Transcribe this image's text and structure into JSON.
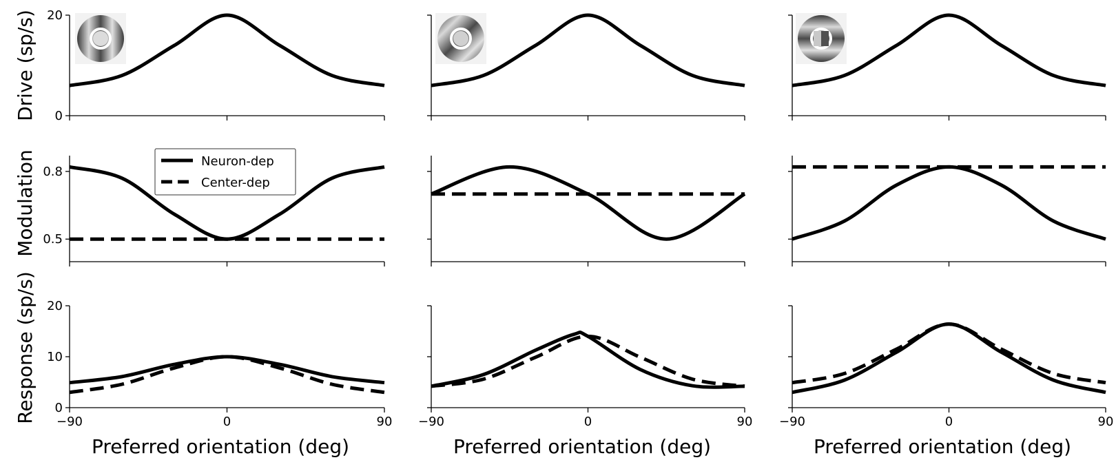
{
  "figure": {
    "row_labels": [
      "Drive (sp/s)",
      "Modulation",
      "Response (sp/s)"
    ],
    "xlabel": "Preferred orientation (deg)",
    "legend": [
      "Neuron-dep",
      "Center-dep"
    ],
    "legend_location": "upper-left of middle-left panel"
  },
  "chart_data": [
    {
      "type": "line",
      "row": 0,
      "col": 0,
      "stimulus_icon": "annulus-vertical-grating-icon",
      "xlim": [
        -90,
        90
      ],
      "ylim": [
        0,
        20
      ],
      "xticks": [
        -90,
        0,
        90
      ],
      "yticks": [
        0,
        20
      ],
      "series": [
        {
          "line_style": "solid",
          "x": [
            -90,
            -60,
            -30,
            0,
            30,
            60,
            90
          ],
          "y": [
            6,
            8,
            14,
            20,
            14,
            8,
            6
          ]
        }
      ]
    },
    {
      "type": "line",
      "row": 0,
      "col": 1,
      "stimulus_icon": "annulus-oblique-grating-icon",
      "xlim": [
        -90,
        90
      ],
      "ylim": [
        0,
        20
      ],
      "xticks": [
        -90,
        0,
        90
      ],
      "yticks": [
        0,
        20
      ],
      "series": [
        {
          "line_style": "solid",
          "x": [
            -90,
            -60,
            -30,
            0,
            30,
            60,
            90
          ],
          "y": [
            6,
            8,
            14,
            20,
            14,
            8,
            6
          ]
        }
      ]
    },
    {
      "type": "line",
      "row": 0,
      "col": 2,
      "stimulus_icon": "annulus-horizontal-grating-icon",
      "xlim": [
        -90,
        90
      ],
      "ylim": [
        0,
        20
      ],
      "xticks": [
        -90,
        0,
        90
      ],
      "yticks": [
        0,
        20
      ],
      "series": [
        {
          "line_style": "solid",
          "x": [
            -90,
            -60,
            -30,
            0,
            30,
            60,
            90
          ],
          "y": [
            6,
            8,
            14,
            20,
            14,
            8,
            6
          ]
        }
      ]
    },
    {
      "type": "line",
      "row": 1,
      "col": 0,
      "xlim": [
        -90,
        90
      ],
      "ylim": [
        0.4,
        0.87
      ],
      "xticks": [
        -90,
        0,
        90
      ],
      "yticks": [
        0.5,
        0.8
      ],
      "series": [
        {
          "name": "Neuron-dep",
          "line_style": "solid",
          "x": [
            -90,
            -60,
            -30,
            0,
            30,
            60,
            90
          ],
          "y": [
            0.82,
            0.77,
            0.61,
            0.5,
            0.61,
            0.77,
            0.82
          ]
        },
        {
          "name": "Center-dep",
          "line_style": "dashed",
          "x": [
            -90,
            90
          ],
          "y": [
            0.5,
            0.5
          ]
        }
      ]
    },
    {
      "type": "line",
      "row": 1,
      "col": 1,
      "xlim": [
        -90,
        90
      ],
      "ylim": [
        0.4,
        0.87
      ],
      "xticks": [
        -90,
        0,
        90
      ],
      "yticks": [
        0.5,
        0.8
      ],
      "series": [
        {
          "name": "Neuron-dep",
          "line_style": "solid",
          "x": [
            -90,
            -45,
            0,
            45,
            90
          ],
          "y": [
            0.7,
            0.82,
            0.7,
            0.5,
            0.7
          ]
        },
        {
          "name": "Center-dep",
          "line_style": "dashed",
          "x": [
            -90,
            90
          ],
          "y": [
            0.7,
            0.7
          ]
        }
      ]
    },
    {
      "type": "line",
      "row": 1,
      "col": 2,
      "xlim": [
        -90,
        90
      ],
      "ylim": [
        0.4,
        0.87
      ],
      "xticks": [
        -90,
        0,
        90
      ],
      "yticks": [
        0.5,
        0.8
      ],
      "series": [
        {
          "name": "Neuron-dep",
          "line_style": "solid",
          "x": [
            -90,
            -60,
            -30,
            0,
            30,
            60,
            90
          ],
          "y": [
            0.5,
            0.58,
            0.74,
            0.82,
            0.74,
            0.58,
            0.5
          ]
        },
        {
          "name": "Center-dep",
          "line_style": "dashed",
          "x": [
            -90,
            90
          ],
          "y": [
            0.82,
            0.82
          ]
        }
      ]
    },
    {
      "type": "line",
      "row": 2,
      "col": 0,
      "xlim": [
        -90,
        90
      ],
      "ylim": [
        0,
        20
      ],
      "xticks": [
        -90,
        0,
        90
      ],
      "yticks": [
        0,
        10,
        20
      ],
      "xticklabels": [
        "−90",
        "0",
        "90"
      ],
      "series": [
        {
          "name": "Neuron-dep",
          "line_style": "solid",
          "x": [
            -90,
            -60,
            -30,
            0,
            30,
            60,
            90
          ],
          "y": [
            4.9,
            6.1,
            8.5,
            10,
            8.5,
            6.1,
            4.9
          ]
        },
        {
          "name": "Center-dep",
          "line_style": "dashed",
          "x": [
            -90,
            -60,
            -30,
            0,
            30,
            60,
            90
          ],
          "y": [
            3,
            4.6,
            7.8,
            10,
            7.8,
            4.6,
            3
          ]
        }
      ]
    },
    {
      "type": "line",
      "row": 2,
      "col": 1,
      "xlim": [
        -90,
        90
      ],
      "ylim": [
        0,
        20
      ],
      "xticks": [
        -90,
        0,
        90
      ],
      "yticks": [
        0,
        10,
        20
      ],
      "xticklabels": [
        "−90",
        "0",
        "90"
      ],
      "series": [
        {
          "name": "Neuron-dep",
          "line_style": "solid",
          "x": [
            -90,
            -60,
            -30,
            -8,
            0,
            30,
            60,
            90
          ],
          "y": [
            4.2,
            6.5,
            11.3,
            14.4,
            14,
            7.5,
            4.3,
            4.2
          ]
        },
        {
          "name": "Center-dep",
          "line_style": "dashed",
          "x": [
            -90,
            -60,
            -30,
            0,
            30,
            60,
            90
          ],
          "y": [
            4.2,
            5.6,
            9.9,
            14,
            9.9,
            5.6,
            4.2
          ]
        }
      ]
    },
    {
      "type": "line",
      "row": 2,
      "col": 2,
      "xlim": [
        -90,
        90
      ],
      "ylim": [
        0,
        20
      ],
      "xticks": [
        -90,
        0,
        90
      ],
      "yticks": [
        0,
        10,
        20
      ],
      "xticklabels": [
        "−90",
        "0",
        "90"
      ],
      "series": [
        {
          "name": "Neuron-dep",
          "line_style": "solid",
          "x": [
            -90,
            -60,
            -30,
            0,
            30,
            60,
            90
          ],
          "y": [
            3,
            5.4,
            10.9,
            16.4,
            10.9,
            5.4,
            3
          ]
        },
        {
          "name": "Center-dep",
          "line_style": "dashed",
          "x": [
            -90,
            -60,
            -30,
            0,
            30,
            60,
            90
          ],
          "y": [
            4.9,
            6.7,
            11.5,
            16.4,
            11.5,
            6.7,
            4.9
          ]
        }
      ]
    }
  ]
}
